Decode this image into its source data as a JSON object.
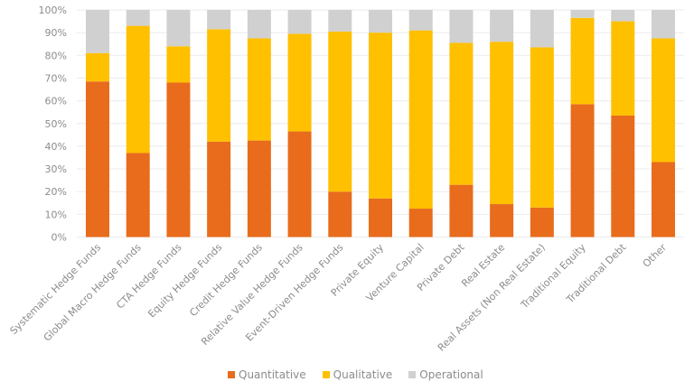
{
  "chart_data": {
    "type": "bar",
    "stacked": true,
    "title": "",
    "xlabel": "",
    "ylabel": "",
    "ylim": [
      0,
      100
    ],
    "yticks": [
      "0%",
      "10%",
      "20%",
      "30%",
      "40%",
      "50%",
      "60%",
      "70%",
      "80%",
      "90%",
      "100%"
    ],
    "grid": true,
    "legend_position": "bottom",
    "categories": [
      "Systematic Hedge Funds",
      "Global Macro Hedge Funds",
      "CTA Hedge Funds",
      "Equity Hedge Funds",
      "Credit Hedge Funds",
      "Relative Value Hedge Funds",
      "Event-Driven Hedge Funds",
      "Private Equity",
      "Venture Capital",
      "Private Debt",
      "Real Estate",
      "Real Assets (Non Real Estate)",
      "Traditional Equity",
      "Traditional Debt",
      "Other"
    ],
    "series": [
      {
        "name": "Quantitative",
        "color": "#E86C1C",
        "values": [
          68.5,
          37,
          68,
          42,
          42.5,
          46.5,
          20,
          17,
          12.5,
          23,
          14.5,
          13,
          58.5,
          53.5,
          33
        ]
      },
      {
        "name": "Qualitative",
        "color": "#FFC000",
        "values": [
          12.5,
          56,
          16,
          49.5,
          45,
          43,
          70.5,
          73,
          78.5,
          62.5,
          71.5,
          70.5,
          38,
          41.5,
          54.5
        ]
      },
      {
        "name": "Operational",
        "color": "#D0D0D0",
        "values": [
          19,
          7,
          16,
          8.5,
          12.5,
          10.5,
          9.5,
          10,
          9,
          14.5,
          14,
          16.5,
          3.5,
          5,
          12.5
        ]
      }
    ]
  }
}
